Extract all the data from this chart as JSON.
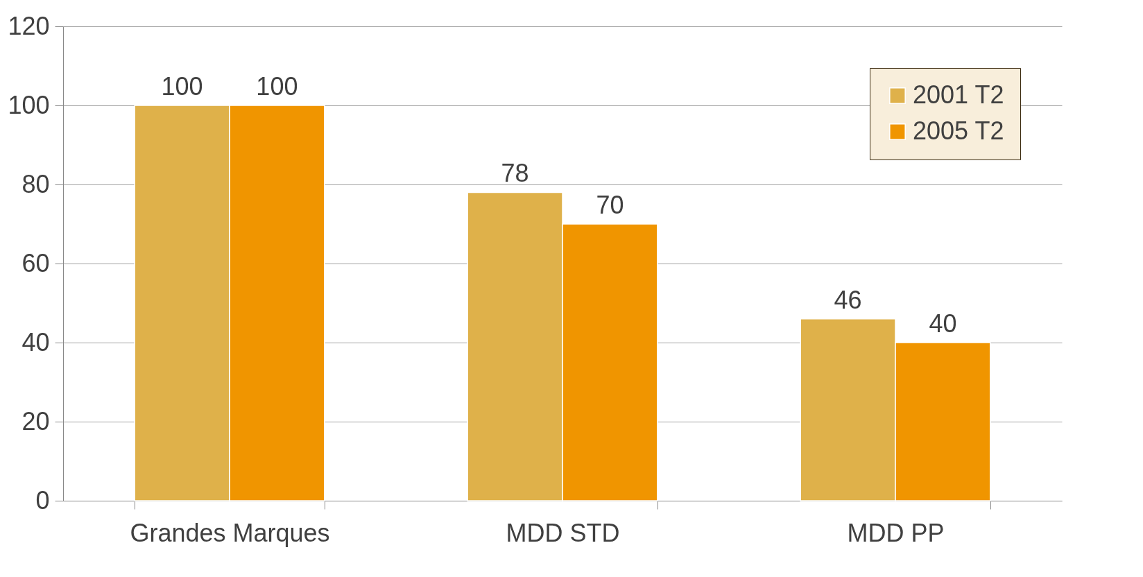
{
  "chart_data": {
    "type": "bar",
    "categories": [
      "Grandes Marques",
      "MDD STD",
      "MDD PP"
    ],
    "series": [
      {
        "name": "2001 T2",
        "color": "#dfb14a",
        "values": [
          100,
          78,
          46
        ]
      },
      {
        "name": "2005 T2",
        "color": "#f09500",
        "values": [
          100,
          70,
          40
        ]
      }
    ],
    "ylim": [
      0,
      120
    ],
    "yticks": [
      0,
      20,
      40,
      60,
      80,
      100,
      120
    ],
    "grid": "y",
    "legend": "top right",
    "data_labels": true
  }
}
